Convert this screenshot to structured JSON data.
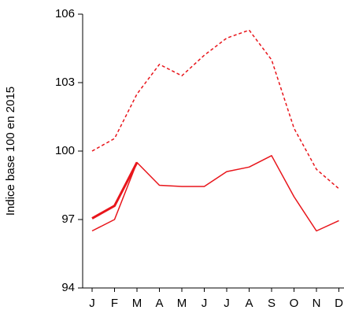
{
  "chart_data": {
    "type": "line",
    "y_label": "Indice base 100 en 2015",
    "categories": [
      "J",
      "F",
      "M",
      "A",
      "M",
      "J",
      "J",
      "A",
      "S",
      "O",
      "N",
      "D"
    ],
    "series": [
      {
        "color": "#e8151b",
        "dash": true,
        "width": 1.5,
        "values": [
          100.0,
          100.55,
          102.5,
          103.8,
          103.3,
          104.2,
          104.95,
          105.3,
          104.0,
          101.0,
          99.2,
          98.35
        ]
      },
      {
        "color": "#e8151b",
        "dash": false,
        "width": 1.5,
        "values": [
          96.5,
          97.0,
          99.5,
          98.5,
          98.45,
          98.45,
          99.1,
          99.3,
          99.8,
          98.0,
          96.5,
          96.95
        ]
      },
      {
        "color": "#e8151b",
        "dash": false,
        "width": 3,
        "values": [
          97.05,
          97.6,
          99.5,
          null,
          null,
          null,
          null,
          null,
          null,
          null,
          null,
          null
        ]
      }
    ],
    "ylim": [
      94,
      106
    ],
    "yticks": [
      94,
      97,
      100,
      103,
      106
    ]
  }
}
